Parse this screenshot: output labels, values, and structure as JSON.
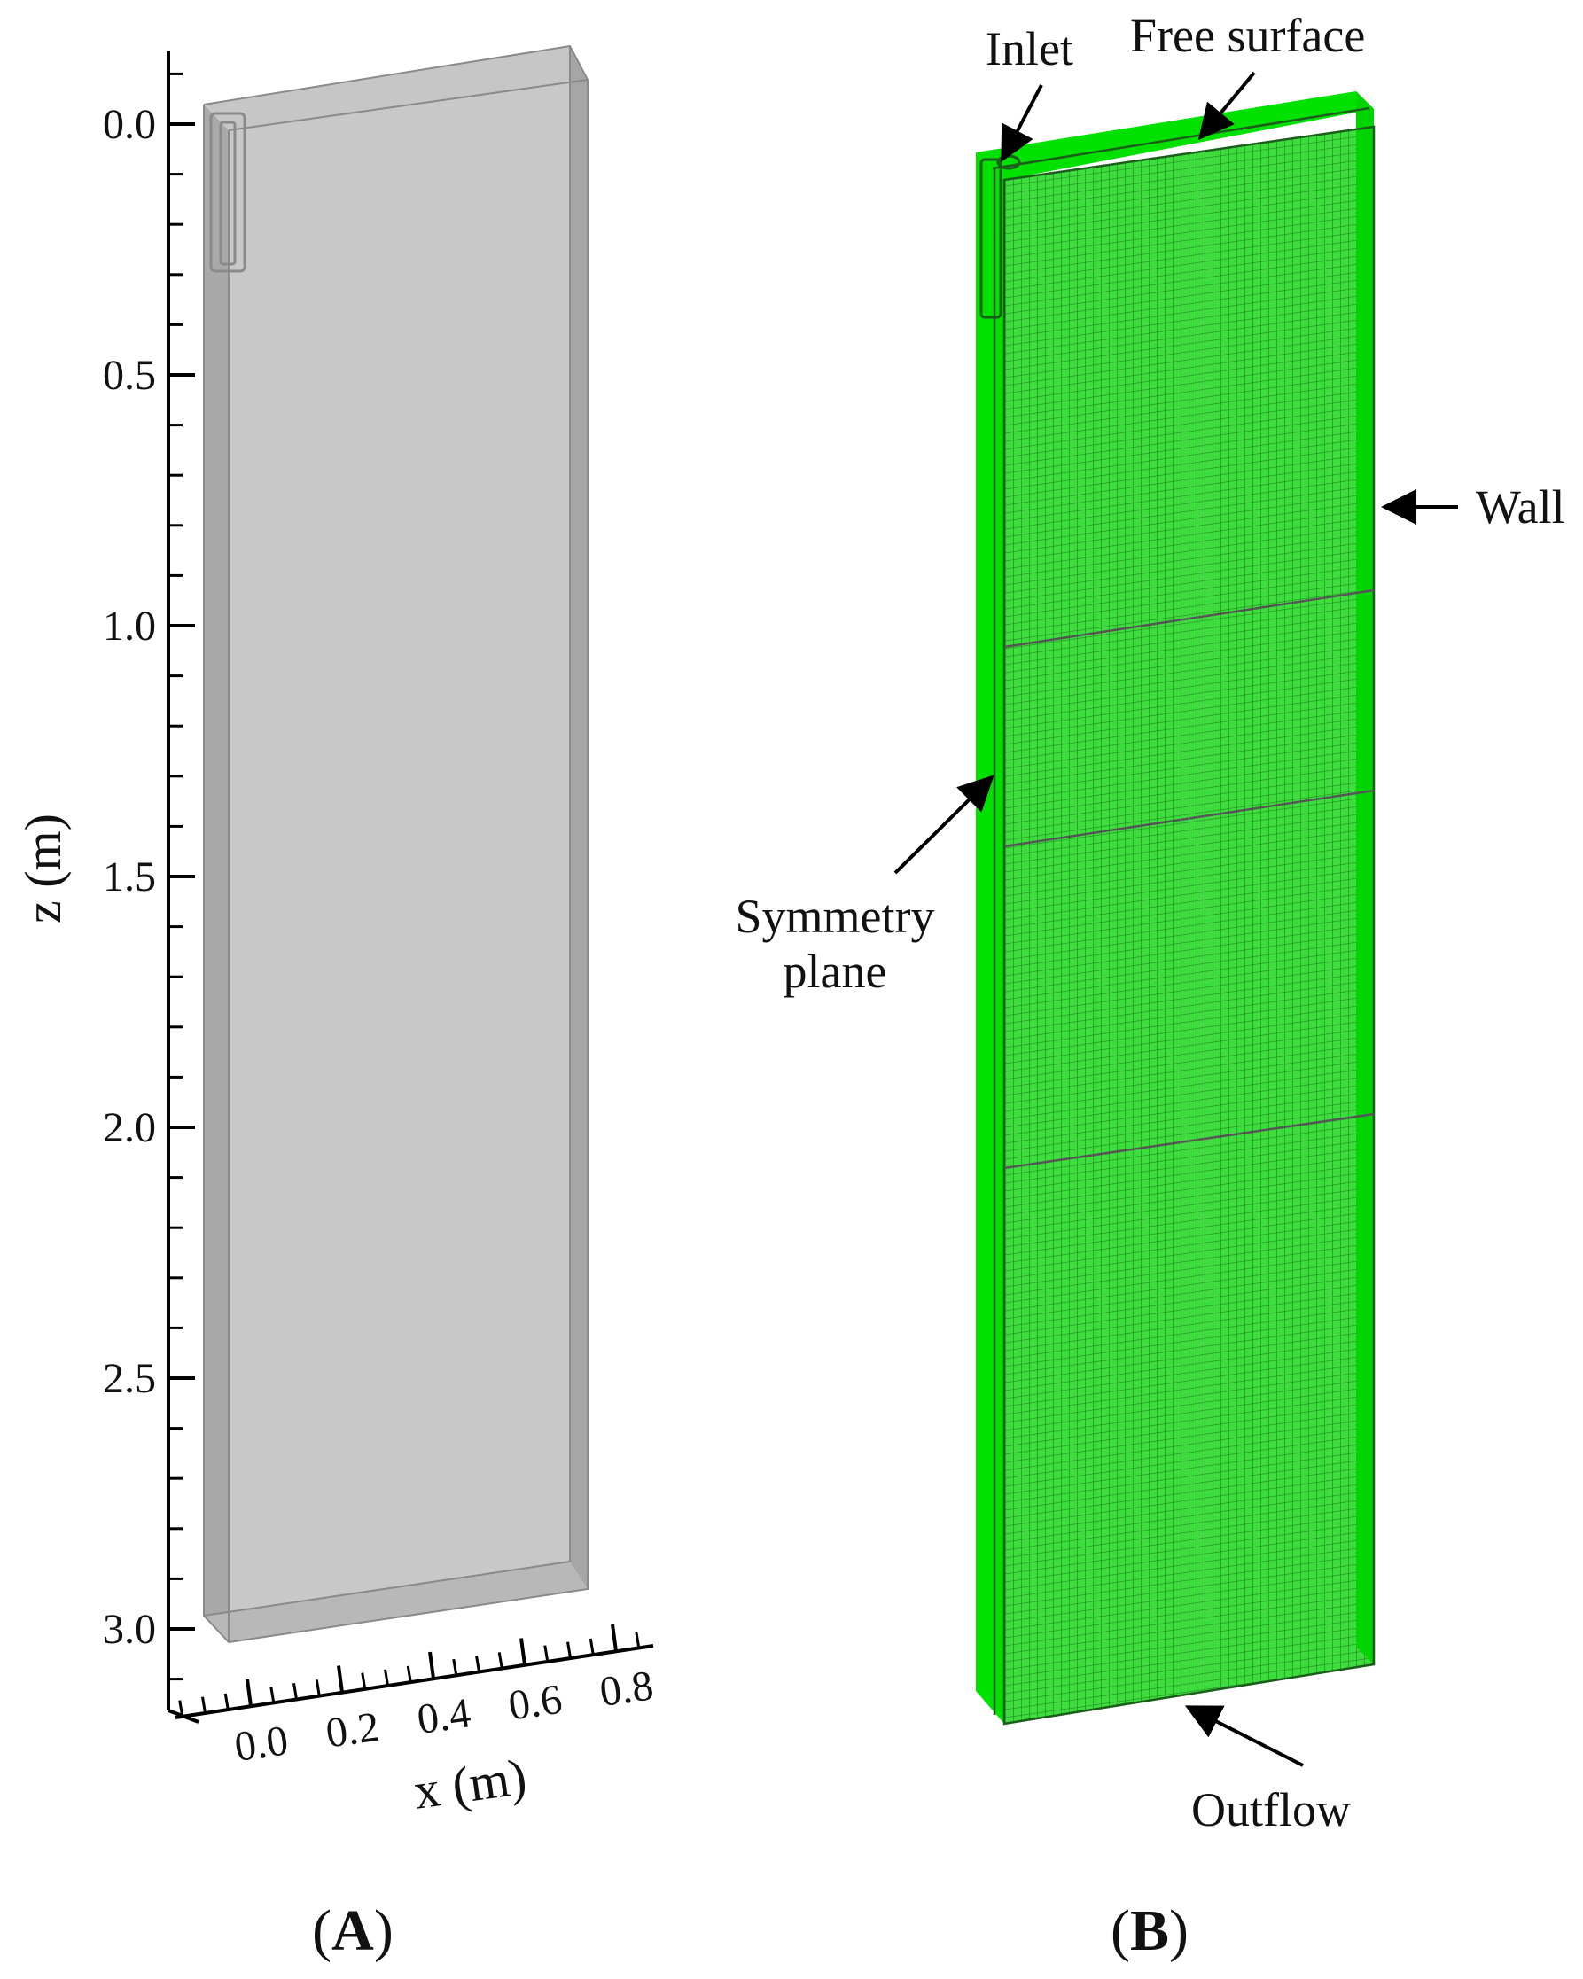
{
  "panels": [
    {
      "id": "A",
      "label_open": "(",
      "label_letter": "A",
      "label_close": ")"
    },
    {
      "id": "B",
      "label_open": "(",
      "label_letter": "B",
      "label_close": ")"
    }
  ],
  "panel_a": {
    "z_axis": {
      "title": "z (m)",
      "ticks": [
        "0.0",
        "0.5",
        "1.0",
        "1.5",
        "2.0",
        "2.5",
        "3.0"
      ]
    },
    "x_axis": {
      "title": "x (m)",
      "ticks": [
        "0.0",
        "0.2",
        "0.4",
        "0.6",
        "0.8"
      ]
    },
    "colors": {
      "box_face": "#c8c8c8",
      "box_side": "#a8a8a8",
      "box_top": "#bcbcbc",
      "box_edge": "#8a8a8a"
    }
  },
  "panel_b": {
    "callouts": {
      "inlet": "Inlet",
      "free_surface": "Free surface",
      "wall": "Wall",
      "symmetry_line1": "Symmetry",
      "symmetry_line2": "plane",
      "outflow": "Outflow"
    },
    "colors": {
      "mesh_face": "#2fdc2f",
      "mesh_side": "#00e100",
      "mesh_line": "#1f8a1f",
      "block_line": "#555555"
    }
  }
}
